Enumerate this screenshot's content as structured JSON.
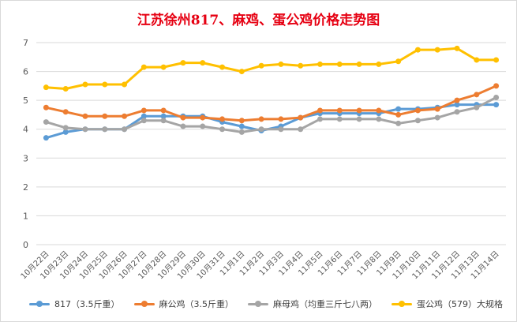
{
  "chart_data": {
    "type": "line",
    "title": "江苏徐州817、麻鸡、蛋公鸡价格走势图",
    "xlabel": "",
    "ylabel": "",
    "ylim": [
      0,
      7
    ],
    "yticks": [
      0,
      1,
      2,
      3,
      4,
      5,
      6,
      7
    ],
    "grid": true,
    "legend_position": "bottom",
    "categories": [
      "10月22日",
      "10月23日",
      "10月24日",
      "10月25日",
      "10月26日",
      "10月27日",
      "10月28日",
      "10月29日",
      "10月30日",
      "10月31日",
      "11月1日",
      "11月2日",
      "11月3日",
      "11月4日",
      "11月5日",
      "11月6日",
      "11月7日",
      "11月8日",
      "11月9日",
      "11月10日",
      "11月11日",
      "11月12日",
      "11月13日",
      "11月14日"
    ],
    "series": [
      {
        "name": "817（3.5斤重）",
        "color": "#5b9bd5",
        "values": [
          3.7,
          3.9,
          4.0,
          4.0,
          4.0,
          4.45,
          4.45,
          4.45,
          4.45,
          4.25,
          4.1,
          3.95,
          4.1,
          4.4,
          4.55,
          4.55,
          4.55,
          4.55,
          4.7,
          4.7,
          4.75,
          4.85,
          4.85,
          4.85
        ]
      },
      {
        "name": "麻公鸡（3.5斤重）",
        "color": "#ed7d31",
        "values": [
          4.75,
          4.6,
          4.45,
          4.45,
          4.45,
          4.65,
          4.65,
          4.4,
          4.4,
          4.35,
          4.3,
          4.35,
          4.35,
          4.4,
          4.65,
          4.65,
          4.65,
          4.65,
          4.5,
          4.65,
          4.7,
          5.0,
          5.2,
          5.5
        ]
      },
      {
        "name": "麻母鸡（均重三斤七八两）",
        "color": "#a5a5a5",
        "values": [
          4.25,
          4.05,
          4.0,
          4.0,
          4.0,
          4.3,
          4.3,
          4.1,
          4.1,
          4.0,
          3.9,
          4.0,
          4.0,
          4.0,
          4.35,
          4.35,
          4.35,
          4.35,
          4.2,
          4.3,
          4.4,
          4.6,
          4.75,
          5.1
        ]
      },
      {
        "name": "蛋公鸡（579）大规格",
        "color": "#ffc000",
        "values": [
          5.45,
          5.4,
          5.55,
          5.55,
          5.55,
          6.15,
          6.15,
          6.3,
          6.3,
          6.15,
          6.0,
          6.2,
          6.25,
          6.2,
          6.25,
          6.25,
          6.25,
          6.25,
          6.35,
          6.75,
          6.75,
          6.8,
          6.4,
          6.4
        ]
      }
    ]
  },
  "colors": {
    "grid": "#d9d9d9",
    "axis_text": "#595959",
    "title": "#e60012"
  }
}
